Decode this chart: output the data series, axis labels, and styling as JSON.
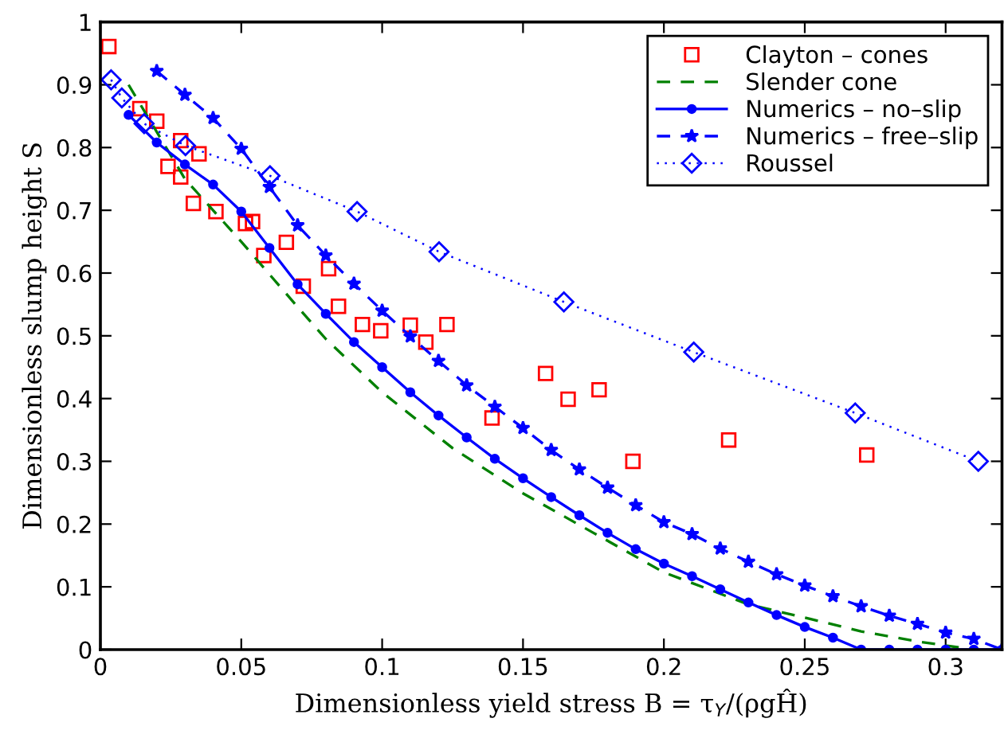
{
  "chart_data": {
    "type": "line",
    "xlabel": "Dimensionless yield stress B = τ$_{Y}$/(ρgĤ)",
    "ylabel": "Dimensionless slump height S",
    "xlim": [
      0,
      0.32
    ],
    "xticks": [
      0,
      0.05,
      0.1,
      0.15,
      0.2,
      0.25,
      0.3
    ],
    "ylim": [
      0,
      1
    ],
    "yticks": [
      0,
      0.1,
      0.2,
      0.3,
      0.4,
      0.5,
      0.6,
      0.7,
      0.8,
      0.9,
      1
    ],
    "legend": "top right",
    "series": [
      {
        "name": "Clayton – cones",
        "type": "scatter",
        "marker": "square",
        "color": "#ff0000",
        "x": [
          0.003,
          0.014,
          0.02,
          0.0285,
          0.035,
          0.024,
          0.0285,
          0.033,
          0.041,
          0.0515,
          0.054,
          0.058,
          0.066,
          0.072,
          0.081,
          0.0845,
          0.093,
          0.0995,
          0.11,
          0.1155,
          0.123,
          0.139,
          0.158,
          0.166,
          0.177,
          0.189,
          0.223,
          0.272
        ],
        "values": [
          0.961,
          0.862,
          0.842,
          0.811,
          0.79,
          0.77,
          0.753,
          0.711,
          0.698,
          0.679,
          0.682,
          0.628,
          0.649,
          0.579,
          0.607,
          0.547,
          0.518,
          0.508,
          0.517,
          0.49,
          0.518,
          0.369,
          0.44,
          0.399,
          0.414,
          0.3,
          0.334,
          0.31
        ]
      },
      {
        "name": "Slender cone",
        "marker": "none",
        "line_style": "dashed",
        "color": "#008000",
        "x": [
          0.01,
          0.03,
          0.05,
          0.07,
          0.08,
          0.1,
          0.125,
          0.15,
          0.175,
          0.2,
          0.23,
          0.25,
          0.27,
          0.29,
          0.31
        ],
        "values": [
          0.9,
          0.75,
          0.65,
          0.546,
          0.495,
          0.41,
          0.321,
          0.249,
          0.186,
          0.123,
          0.072,
          0.051,
          0.029,
          0.013,
          0
        ]
      },
      {
        "name": "Numerics – no–slip",
        "marker": "circle",
        "line_style": "solid",
        "color": "#0000ff",
        "x": [
          0.01,
          0.02,
          0.03,
          0.04,
          0.05,
          0.06,
          0.07,
          0.08,
          0.09,
          0.1,
          0.11,
          0.12,
          0.13,
          0.14,
          0.15,
          0.16,
          0.17,
          0.18,
          0.19,
          0.2,
          0.21,
          0.22,
          0.23,
          0.24,
          0.25,
          0.26,
          0.27,
          0.28,
          0.29,
          0.3,
          0.31,
          0.32
        ],
        "values": [
          0.852,
          0.808,
          0.773,
          0.741,
          0.698,
          0.64,
          0.582,
          0.535,
          0.49,
          0.45,
          0.41,
          0.373,
          0.338,
          0.304,
          0.273,
          0.243,
          0.214,
          0.186,
          0.16,
          0.137,
          0.117,
          0.096,
          0.075,
          0.055,
          0.036,
          0.019,
          0,
          0,
          0,
          0,
          0,
          0
        ]
      },
      {
        "name": "Numerics – free–slip",
        "marker": "star",
        "line_style": "dashed",
        "color": "#0000ff",
        "x": [
          0.02,
          0.03,
          0.04,
          0.05,
          0.06,
          0.07,
          0.08,
          0.09,
          0.1,
          0.11,
          0.12,
          0.13,
          0.14,
          0.15,
          0.16,
          0.17,
          0.18,
          0.19,
          0.2,
          0.21,
          0.22,
          0.23,
          0.24,
          0.25,
          0.26,
          0.27,
          0.28,
          0.29,
          0.3,
          0.31,
          0.32
        ],
        "values": [
          0.922,
          0.884,
          0.847,
          0.798,
          0.737,
          0.676,
          0.628,
          0.583,
          0.54,
          0.499,
          0.46,
          0.421,
          0.387,
          0.353,
          0.318,
          0.287,
          0.258,
          0.23,
          0.203,
          0.184,
          0.161,
          0.14,
          0.12,
          0.102,
          0.085,
          0.069,
          0.054,
          0.041,
          0.027,
          0.017,
          0
        ]
      },
      {
        "name": "Roussel",
        "marker": "diamond",
        "line_style": "dotted",
        "color": "#0000ff",
        "x": [
          0.0038,
          0.0076,
          0.0155,
          0.0302,
          0.0602,
          0.0911,
          0.1202,
          0.1645,
          0.2106,
          0.2679,
          0.3116
        ],
        "values": [
          0.908,
          0.879,
          0.838,
          0.803,
          0.755,
          0.698,
          0.634,
          0.554,
          0.474,
          0.377,
          0.3
        ]
      }
    ]
  }
}
